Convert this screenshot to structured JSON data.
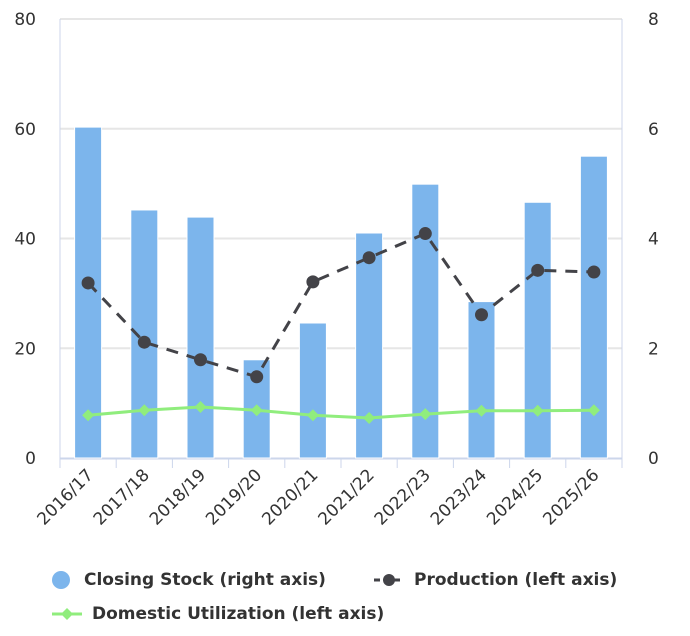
{
  "chart_data": {
    "type": "bar+line",
    "categories": [
      "2016/17",
      "2017/18",
      "2018/19",
      "2019/20",
      "2020/21",
      "2021/22",
      "2022/23",
      "2023/24",
      "2024/25",
      "2025/26"
    ],
    "left_axis": {
      "ylim": [
        0,
        80
      ],
      "ticks": [
        "0",
        "20",
        "40",
        "60",
        "80"
      ],
      "tick_values": [
        0,
        20,
        40,
        60,
        80
      ]
    },
    "right_axis": {
      "ylim": [
        0,
        8
      ],
      "ticks": [
        "0",
        "2",
        "4",
        "6",
        "8"
      ],
      "tick_values": [
        0,
        2,
        4,
        6,
        8
      ]
    },
    "grid": true,
    "legend_placement": "bottom",
    "series": [
      {
        "name": "Closing Stock (right axis)",
        "type": "bar",
        "axis": "right",
        "color": "#7cb5ec",
        "values": [
          6.03,
          4.52,
          4.39,
          1.79,
          2.46,
          4.1,
          4.99,
          2.85,
          4.66,
          5.5
        ]
      },
      {
        "name": "Production (left axis)",
        "type": "line",
        "axis": "left",
        "color": "#434348",
        "dash": true,
        "values": [
          31.9,
          21.1,
          17.9,
          14.8,
          32.1,
          36.5,
          40.9,
          26.1,
          34.2,
          33.9
        ]
      },
      {
        "name": "Domestic Utilization (left axis)",
        "type": "line",
        "axis": "left",
        "color": "#90ed7d",
        "values": [
          7.8,
          8.7,
          9.3,
          8.7,
          7.8,
          7.3,
          8.0,
          8.6,
          8.6,
          8.7
        ]
      }
    ]
  }
}
